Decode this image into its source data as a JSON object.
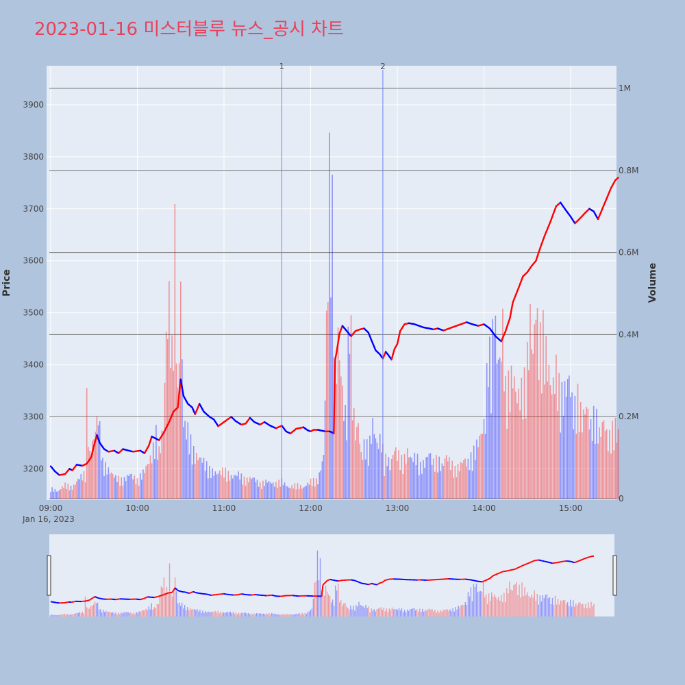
{
  "title": "2023-01-16 미스터블루 뉴스_공시 차트",
  "colors": {
    "up": "#ff0000",
    "down": "#0000ff",
    "plot_bg": "#e5ecf6",
    "paper_bg": "#b0c4de",
    "title": "#e8415a"
  },
  "chart_data": {
    "type": "candlestick",
    "y_label": "Price",
    "y2_label": "Volume",
    "y_ticks": [
      3200,
      3300,
      3400,
      3500,
      3600,
      3700,
      3800,
      3900
    ],
    "y_range": [
      3140,
      3975
    ],
    "y2_ticks": [
      0,
      200000,
      400000,
      600000,
      800000,
      1000000
    ],
    "y2_tick_labels": [
      "0",
      "0.2M",
      "0.4M",
      "0.6M",
      "0.8M",
      "1M"
    ],
    "y2_range": [
      0,
      1055000
    ],
    "x_ticks": [
      "09:00",
      "10:00",
      "11:00",
      "12:00",
      "13:00",
      "14:00",
      "15:00"
    ],
    "x_date_label": "Jan 16, 2023",
    "x_range_minutes": [
      0,
      393
    ],
    "news_markers": [
      {
        "label": "1",
        "minute": 160
      },
      {
        "label": "2",
        "minute": 230
      }
    ],
    "price_path": [
      [
        0,
        3205
      ],
      [
        3,
        3195
      ],
      [
        6,
        3188
      ],
      [
        10,
        3190
      ],
      [
        13,
        3200
      ],
      [
        15,
        3197
      ],
      [
        18,
        3208
      ],
      [
        22,
        3206
      ],
      [
        25,
        3210
      ],
      [
        28,
        3222
      ],
      [
        30,
        3245
      ],
      [
        32,
        3265
      ],
      [
        34,
        3250
      ],
      [
        37,
        3238
      ],
      [
        40,
        3233
      ],
      [
        44,
        3235
      ],
      [
        47,
        3230
      ],
      [
        50,
        3238
      ],
      [
        54,
        3235
      ],
      [
        57,
        3233
      ],
      [
        62,
        3235
      ],
      [
        65,
        3230
      ],
      [
        68,
        3245
      ],
      [
        70,
        3262
      ],
      [
        73,
        3258
      ],
      [
        75,
        3255
      ],
      [
        78,
        3268
      ],
      [
        82,
        3290
      ],
      [
        85,
        3310
      ],
      [
        88,
        3318
      ],
      [
        90,
        3372
      ],
      [
        92,
        3340
      ],
      [
        95,
        3325
      ],
      [
        98,
        3318
      ],
      [
        100,
        3305
      ],
      [
        103,
        3325
      ],
      [
        106,
        3310
      ],
      [
        110,
        3300
      ],
      [
        113,
        3295
      ],
      [
        116,
        3282
      ],
      [
        120,
        3290
      ],
      [
        125,
        3300
      ],
      [
        128,
        3292
      ],
      [
        132,
        3285
      ],
      [
        135,
        3287
      ],
      [
        138,
        3298
      ],
      [
        141,
        3290
      ],
      [
        145,
        3285
      ],
      [
        148,
        3290
      ],
      [
        152,
        3283
      ],
      [
        156,
        3278
      ],
      [
        160,
        3283
      ],
      [
        163,
        3272
      ],
      [
        166,
        3268
      ],
      [
        170,
        3277
      ],
      [
        175,
        3280
      ],
      [
        178,
        3274
      ],
      [
        180,
        3272
      ],
      [
        182,
        3275
      ],
      [
        185,
        3275
      ],
      [
        190,
        3272
      ],
      [
        193,
        3272
      ],
      [
        195,
        3270
      ],
      [
        196,
        3268
      ],
      [
        196,
        3395
      ],
      [
        198,
        3425
      ],
      [
        200,
        3460
      ],
      [
        202,
        3475
      ],
      [
        205,
        3465
      ],
      [
        208,
        3455
      ],
      [
        211,
        3465
      ],
      [
        214,
        3468
      ],
      [
        217,
        3470
      ],
      [
        220,
        3462
      ],
      [
        222,
        3448
      ],
      [
        225,
        3428
      ],
      [
        228,
        3420
      ],
      [
        230,
        3412
      ],
      [
        232,
        3425
      ],
      [
        234,
        3418
      ],
      [
        236,
        3410
      ],
      [
        238,
        3430
      ],
      [
        240,
        3440
      ],
      [
        242,
        3465
      ],
      [
        245,
        3478
      ],
      [
        248,
        3480
      ],
      [
        252,
        3478
      ],
      [
        255,
        3475
      ],
      [
        258,
        3472
      ],
      [
        262,
        3470
      ],
      [
        265,
        3468
      ],
      [
        268,
        3470
      ],
      [
        272,
        3466
      ],
      [
        276,
        3470
      ],
      [
        280,
        3474
      ],
      [
        284,
        3478
      ],
      [
        288,
        3482
      ],
      [
        292,
        3478
      ],
      [
        296,
        3475
      ],
      [
        300,
        3478
      ],
      [
        304,
        3470
      ],
      [
        308,
        3455
      ],
      [
        312,
        3445
      ],
      [
        315,
        3465
      ],
      [
        318,
        3490
      ],
      [
        320,
        3520
      ],
      [
        324,
        3548
      ],
      [
        327,
        3570
      ],
      [
        330,
        3578
      ],
      [
        333,
        3590
      ],
      [
        336,
        3600
      ],
      [
        339,
        3625
      ],
      [
        342,
        3648
      ],
      [
        346,
        3675
      ],
      [
        350,
        3705
      ],
      [
        353,
        3712
      ],
      [
        356,
        3700
      ],
      [
        360,
        3685
      ],
      [
        363,
        3672
      ],
      [
        366,
        3680
      ],
      [
        370,
        3692
      ],
      [
        373,
        3700
      ],
      [
        376,
        3695
      ],
      [
        379,
        3680
      ],
      [
        382,
        3700
      ],
      [
        385,
        3720
      ],
      [
        388,
        3740
      ],
      [
        391,
        3755
      ],
      [
        393,
        3760
      ]
    ],
    "volume_path": [
      [
        0,
        0.03
      ],
      [
        5,
        0.02
      ],
      [
        10,
        0.04
      ],
      [
        15,
        0.03
      ],
      [
        20,
        0.06
      ],
      [
        24,
        0.07
      ],
      [
        25,
        0.27
      ],
      [
        27,
        0.12
      ],
      [
        30,
        0.17
      ],
      [
        33,
        0.24
      ],
      [
        36,
        0.1
      ],
      [
        40,
        0.08
      ],
      [
        45,
        0.06
      ],
      [
        50,
        0.05
      ],
      [
        55,
        0.07
      ],
      [
        60,
        0.05
      ],
      [
        65,
        0.08
      ],
      [
        70,
        0.12
      ],
      [
        73,
        0.18
      ],
      [
        75,
        0.13
      ],
      [
        78,
        0.2
      ],
      [
        80,
        0.45
      ],
      [
        82,
        0.55
      ],
      [
        84,
        0.4
      ],
      [
        86,
        0.72
      ],
      [
        88,
        0.28
      ],
      [
        90,
        0.58
      ],
      [
        92,
        0.21
      ],
      [
        95,
        0.19
      ],
      [
        98,
        0.14
      ],
      [
        100,
        0.12
      ],
      [
        105,
        0.11
      ],
      [
        110,
        0.08
      ],
      [
        115,
        0.07
      ],
      [
        120,
        0.08
      ],
      [
        125,
        0.06
      ],
      [
        130,
        0.07
      ],
      [
        135,
        0.05
      ],
      [
        140,
        0.06
      ],
      [
        145,
        0.04
      ],
      [
        150,
        0.05
      ],
      [
        155,
        0.04
      ],
      [
        160,
        0.05
      ],
      [
        165,
        0.03
      ],
      [
        170,
        0.04
      ],
      [
        175,
        0.03
      ],
      [
        180,
        0.05
      ],
      [
        185,
        0.05
      ],
      [
        189,
        0.12
      ],
      [
        191,
        0.48
      ],
      [
        193,
        0.9
      ],
      [
        195,
        0.79
      ],
      [
        197,
        0.3
      ],
      [
        199,
        0.45
      ],
      [
        201,
        0.35
      ],
      [
        203,
        0.25
      ],
      [
        205,
        0.22
      ],
      [
        207,
        0.62
      ],
      [
        209,
        0.28
      ],
      [
        211,
        0.18
      ],
      [
        213,
        0.21
      ],
      [
        215,
        0.12
      ],
      [
        218,
        0.16
      ],
      [
        220,
        0.13
      ],
      [
        223,
        0.21
      ],
      [
        226,
        0.15
      ],
      [
        229,
        0.17
      ],
      [
        231,
        0.1
      ],
      [
        233,
        0.12
      ],
      [
        235,
        0.09
      ],
      [
        238,
        0.14
      ],
      [
        241,
        0.12
      ],
      [
        244,
        0.1
      ],
      [
        247,
        0.13
      ],
      [
        250,
        0.11
      ],
      [
        253,
        0.12
      ],
      [
        256,
        0.09
      ],
      [
        259,
        0.1
      ],
      [
        262,
        0.13
      ],
      [
        265,
        0.1
      ],
      [
        268,
        0.11
      ],
      [
        271,
        0.09
      ],
      [
        274,
        0.12
      ],
      [
        277,
        0.1
      ],
      [
        280,
        0.08
      ],
      [
        283,
        0.09
      ],
      [
        286,
        0.11
      ],
      [
        289,
        0.1
      ],
      [
        292,
        0.12
      ],
      [
        295,
        0.15
      ],
      [
        298,
        0.18
      ],
      [
        301,
        0.22
      ],
      [
        303,
        0.45
      ],
      [
        305,
        0.34
      ],
      [
        307,
        0.55
      ],
      [
        309,
        0.4
      ],
      [
        311,
        0.38
      ],
      [
        313,
        0.48
      ],
      [
        315,
        0.3
      ],
      [
        318,
        0.32
      ],
      [
        320,
        0.35
      ],
      [
        323,
        0.28
      ],
      [
        326,
        0.3
      ],
      [
        329,
        0.33
      ],
      [
        332,
        0.5
      ],
      [
        334,
        0.4
      ],
      [
        336,
        0.55
      ],
      [
        338,
        0.42
      ],
      [
        341,
        0.46
      ],
      [
        344,
        0.38
      ],
      [
        347,
        0.3
      ],
      [
        350,
        0.36
      ],
      [
        353,
        0.28
      ],
      [
        356,
        0.3
      ],
      [
        359,
        0.34
      ],
      [
        362,
        0.24
      ],
      [
        365,
        0.28
      ],
      [
        368,
        0.22
      ],
      [
        371,
        0.26
      ],
      [
        374,
        0.2
      ],
      [
        377,
        0.24
      ],
      [
        380,
        0.18
      ],
      [
        383,
        0.22
      ],
      [
        386,
        0.16
      ],
      [
        389,
        0.19
      ],
      [
        391,
        0.2
      ],
      [
        393,
        0.18
      ]
    ]
  }
}
